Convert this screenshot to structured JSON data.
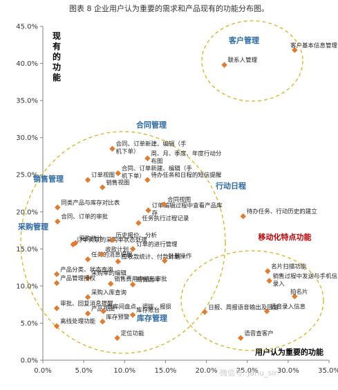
{
  "caption": "图表 8 企业用户认为重要的需求和产品现有的功能分布图。",
  "watermark": "微信号: Jahu_sir",
  "chart_data": {
    "type": "scatter",
    "title": "",
    "xlabel": "用户认为重要的功能",
    "ylabel": "现有的功能",
    "xlim": [
      0,
      35
    ],
    "ylim": [
      0,
      45
    ],
    "x_ticks": [
      "0.0%",
      "5.0%",
      "10.0%",
      "15.0%",
      "20.0%",
      "25.0%",
      "30.0%",
      "35.0%"
    ],
    "y_ticks": [
      "0.0%",
      "5.0%",
      "10.0%",
      "15.0%",
      "20.0%",
      "25.0%",
      "30.0%",
      "35.0%",
      "40.0%",
      "45.0%"
    ],
    "grid": false,
    "marker_color": "#e07b32",
    "cluster_color": "#d8b21a",
    "group_label_color": "#2d6aa3",
    "accent_label_color": "#c00000",
    "points": [
      {
        "x": 22.2,
        "y": 39.8,
        "label": "联系人管理"
      },
      {
        "x": 30.8,
        "y": 41.8,
        "label": "客户基本信息管理"
      },
      {
        "x": 8.5,
        "y": 28.5,
        "label": "合同、订单新建、编辑（手机下单）"
      },
      {
        "x": 9.2,
        "y": 25.2,
        "label": "合同、订单新建、编辑（手机下单）"
      },
      {
        "x": 12.8,
        "y": 27.2,
        "label": "周、月、季度、年度行动分布图"
      },
      {
        "x": 5.5,
        "y": 24.3,
        "label": "订单视图"
      },
      {
        "x": 12.8,
        "y": 24.3,
        "label": "待办任务和日程的短信提醒"
      },
      {
        "x": 7.3,
        "y": 23.3,
        "label": "销售视图"
      },
      {
        "x": 1.8,
        "y": 20.6,
        "label": "同类产品与库存对比表"
      },
      {
        "x": 12.9,
        "y": 20.2,
        "label": "订单编辑过程中查看产品库存"
      },
      {
        "x": 14.8,
        "y": 21.0,
        "label": "合同视图"
      },
      {
        "x": 24.5,
        "y": 19.4,
        "label": "待办任务、行动历史的建立"
      },
      {
        "x": 1.8,
        "y": 18.7,
        "label": "合同、订单的审批"
      },
      {
        "x": 11.7,
        "y": 18.5,
        "label": "任务执行过程记录"
      },
      {
        "x": 3.7,
        "y": 15.6,
        "label": "订单关联的采购单状态处理"
      },
      {
        "x": 4.0,
        "y": 15.8,
        "label": "采购统计"
      },
      {
        "x": 8.5,
        "y": 16.2,
        "label": "历史报价、分析"
      },
      {
        "x": 11.0,
        "y": 15.0,
        "label": "订单的进行管理"
      },
      {
        "x": 5.5,
        "y": 13.6,
        "label": "任务的消息提醒"
      },
      {
        "x": 7.2,
        "y": 14.3,
        "label": "收款计划"
      },
      {
        "x": 9.2,
        "y": 13.3,
        "label": "应收款统计、付款计划"
      },
      {
        "x": 14.9,
        "y": 13.4,
        "label": "批量操作"
      },
      {
        "x": 1.7,
        "y": 11.6,
        "label": "产品分类、状态查询"
      },
      {
        "x": 5.5,
        "y": 11.1,
        "label": "采购单的编辑"
      },
      {
        "x": 1.7,
        "y": 10.4,
        "label": "产品管理授权"
      },
      {
        "x": 8.3,
        "y": 10.3,
        "label": "销售费用申请与审批"
      },
      {
        "x": 11.0,
        "y": 10.2,
        "label": "销售漏斗"
      },
      {
        "x": 5.5,
        "y": 8.5,
        "label": "采购入库查询"
      },
      {
        "x": 1.7,
        "y": 7.0,
        "label": "审批、回复消息提醒"
      },
      {
        "x": 5.5,
        "y": 6.3,
        "label": "产品视图"
      },
      {
        "x": 7.4,
        "y": 6.6,
        "label": "仓库间盘点、调拨、报损"
      },
      {
        "x": 11.0,
        "y": 6.1,
        "label": "库存账台"
      },
      {
        "x": 7.3,
        "y": 5.2,
        "label": "库存预警"
      },
      {
        "x": 1.7,
        "y": 4.6,
        "label": "离线处理功能"
      },
      {
        "x": 9.1,
        "y": 3.0,
        "label": "定位功能"
      },
      {
        "x": 27.5,
        "y": 12.0,
        "label": "名片扫描功能"
      },
      {
        "x": 27.7,
        "y": 10.7,
        "label": "销售过程中发送与手机信息录入"
      },
      {
        "x": 30.8,
        "y": 8.6,
        "label": "拍名片"
      },
      {
        "x": 19.8,
        "y": 6.5,
        "label": "日报、周报语音输出及回复"
      },
      {
        "x": 27.4,
        "y": 6.6,
        "label": "语音录入信息"
      },
      {
        "x": 24.2,
        "y": 3.0,
        "label": "语音查客户"
      }
    ],
    "groups": [
      {
        "label": "客户管理",
        "color": "#2d6aa3"
      },
      {
        "label": "合同管理",
        "color": "#2d6aa3"
      },
      {
        "label": "销售管理",
        "color": "#2d6aa3"
      },
      {
        "label": "行动日程",
        "color": "#2d6aa3"
      },
      {
        "label": "采购管理",
        "color": "#2d6aa3"
      },
      {
        "label": "移动化特点功能",
        "color": "#c00000"
      },
      {
        "label": "库存管理",
        "color": "#2d6aa3"
      }
    ]
  }
}
